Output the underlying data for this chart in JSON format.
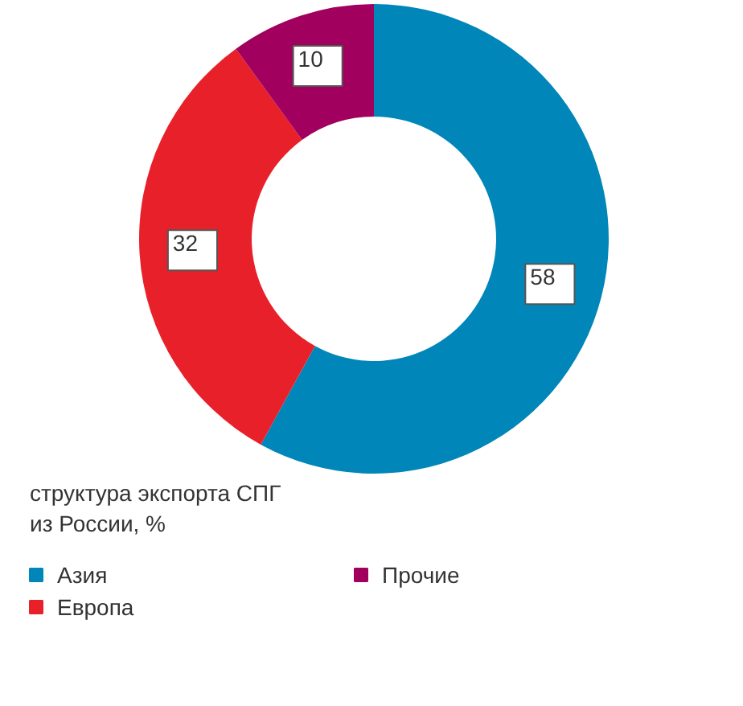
{
  "chart_data": {
    "type": "donut",
    "title": "структура экспорта СПГ\nиз России, %",
    "categories": [
      "Азия",
      "Европа",
      "Прочие"
    ],
    "values": [
      58,
      32,
      10
    ],
    "colors": [
      "#0086b8",
      "#e8202a",
      "#a1005f"
    ],
    "data_labels": true,
    "legend": "bottom"
  }
}
